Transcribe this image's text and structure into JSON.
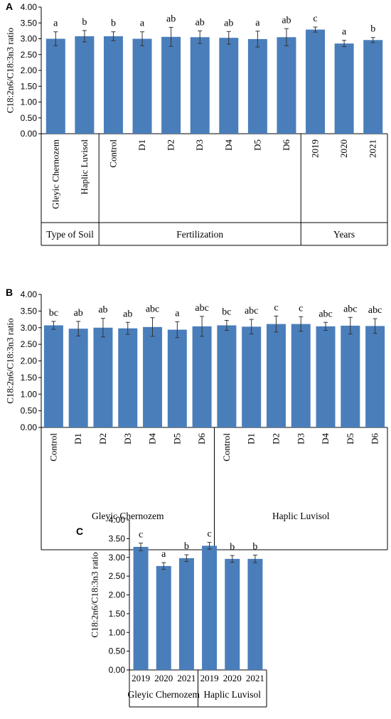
{
  "chart_data": [
    {
      "type": "bar",
      "panel": "A",
      "ylabel": "C18:2n6/C18:3n3 ratio",
      "ylim": [
        0,
        4
      ],
      "yticks": [
        "0.00",
        "0.50",
        "1.00",
        "1.50",
        "2.00",
        "2.50",
        "3.00",
        "3.50",
        "4.00"
      ],
      "categories": [
        "Gleyic Chernozem",
        "Haplic Luvisol",
        "Control",
        "D1",
        "D2",
        "D3",
        "D4",
        "D5",
        "D6",
        "2019",
        "2020",
        "2021"
      ],
      "values": [
        3.0,
        3.08,
        3.08,
        3.0,
        3.06,
        3.05,
        3.03,
        2.99,
        3.05,
        3.29,
        2.85,
        2.96
      ],
      "errors": [
        0.22,
        0.18,
        0.14,
        0.22,
        0.3,
        0.2,
        0.2,
        0.25,
        0.27,
        0.08,
        0.1,
        0.08
      ],
      "letters": [
        "a",
        "b",
        "b",
        "a",
        "ab",
        "ab",
        "ab",
        "a",
        "ab",
        "c",
        "a",
        "b"
      ],
      "groups": [
        {
          "label": "Type of Soil",
          "count": 2
        },
        {
          "label": "Fertilization",
          "count": 7
        },
        {
          "label": "Years",
          "count": 3
        }
      ]
    },
    {
      "type": "bar",
      "panel": "B",
      "ylabel": "C18:2n6/C18:3n3 ratio",
      "ylim": [
        0,
        4
      ],
      "yticks": [
        "0.00",
        "0.50",
        "1.00",
        "1.50",
        "2.00",
        "2.50",
        "3.00",
        "3.50",
        "4.00"
      ],
      "categories": [
        "Control",
        "D1",
        "D2",
        "D3",
        "D4",
        "D5",
        "D6",
        "Control",
        "D1",
        "D2",
        "D3",
        "D4",
        "D5",
        "D6"
      ],
      "values": [
        3.07,
        2.97,
        3.0,
        2.98,
        3.02,
        2.94,
        3.04,
        3.07,
        3.03,
        3.11,
        3.11,
        3.04,
        3.06,
        3.05
      ],
      "errors": [
        0.12,
        0.22,
        0.28,
        0.18,
        0.28,
        0.24,
        0.3,
        0.15,
        0.22,
        0.24,
        0.22,
        0.12,
        0.25,
        0.22
      ],
      "letters": [
        "bc",
        "ab",
        "ab",
        "ab",
        "abc",
        "a",
        "abc",
        "bc",
        "abc",
        "c",
        "c",
        "abc",
        "abc",
        "abc"
      ],
      "groups": [
        {
          "label": "Gleyic Chernozem",
          "count": 7
        },
        {
          "label": "Haplic Luvisol",
          "count": 7
        }
      ]
    },
    {
      "type": "bar",
      "panel": "C",
      "ylabel": "C18:2n6/C18:3n3 ratio",
      "ylim": [
        0,
        4
      ],
      "yticks": [
        "0.00",
        "0.50",
        "1.00",
        "1.50",
        "2.00",
        "2.50",
        "3.00",
        "3.50",
        "4.00"
      ],
      "categories": [
        "2019",
        "2020",
        "2021",
        "2019",
        "2020",
        "2021"
      ],
      "values": [
        3.28,
        2.77,
        2.98,
        3.31,
        2.96,
        2.96
      ],
      "errors": [
        0.1,
        0.09,
        0.09,
        0.09,
        0.09,
        0.1
      ],
      "letters": [
        "c",
        "a",
        "b",
        "c",
        "b",
        "b"
      ],
      "groups": [
        {
          "label": "Gleyic Chernozem",
          "count": 3
        },
        {
          "label": "Haplic Luvisol",
          "count": 3
        }
      ]
    }
  ]
}
